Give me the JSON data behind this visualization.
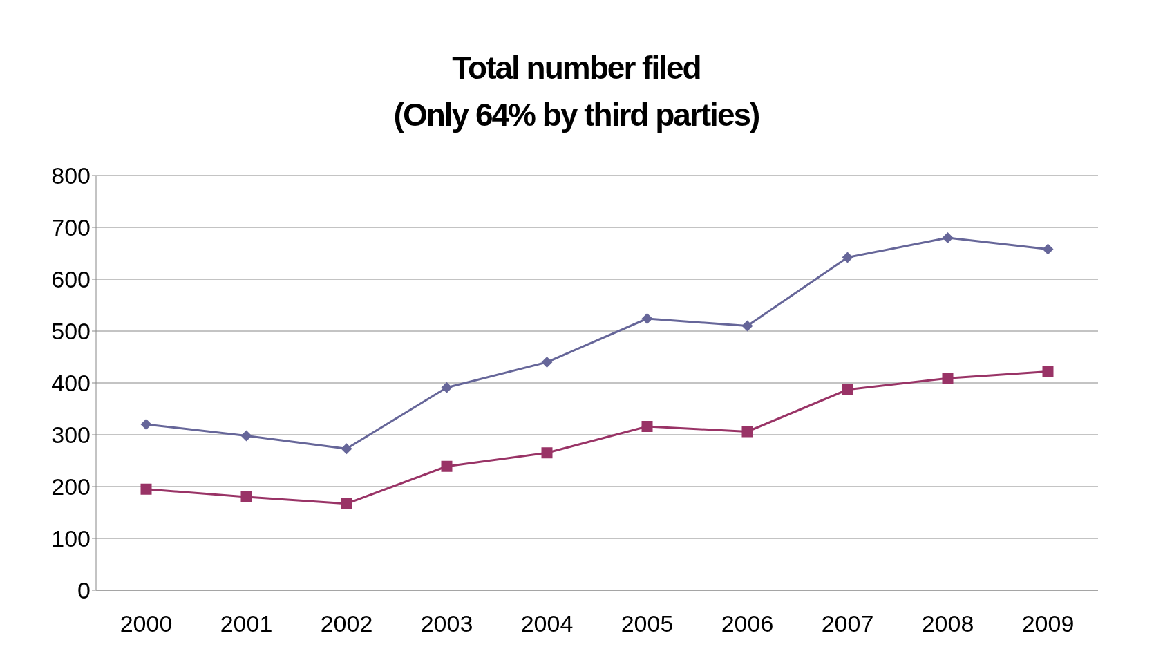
{
  "chart_data": {
    "type": "line",
    "title": "Total number filed\n(Only 64% by third parties)",
    "categories": [
      "2000",
      "2001",
      "2002",
      "2003",
      "2004",
      "2005",
      "2006",
      "2007",
      "2008",
      "2009"
    ],
    "series": [
      {
        "color": "#666699",
        "marker": "diamond",
        "values": [
          320,
          298,
          273,
          391,
          440,
          524,
          510,
          642,
          680,
          658
        ]
      },
      {
        "color": "#993366",
        "marker": "square",
        "values": [
          195,
          180,
          167,
          239,
          265,
          316,
          306,
          387,
          409,
          422
        ]
      }
    ],
    "ylim": [
      0,
      800
    ],
    "yticks": [
      0,
      100,
      200,
      300,
      400,
      500,
      600,
      700,
      800
    ],
    "grid": "y"
  }
}
